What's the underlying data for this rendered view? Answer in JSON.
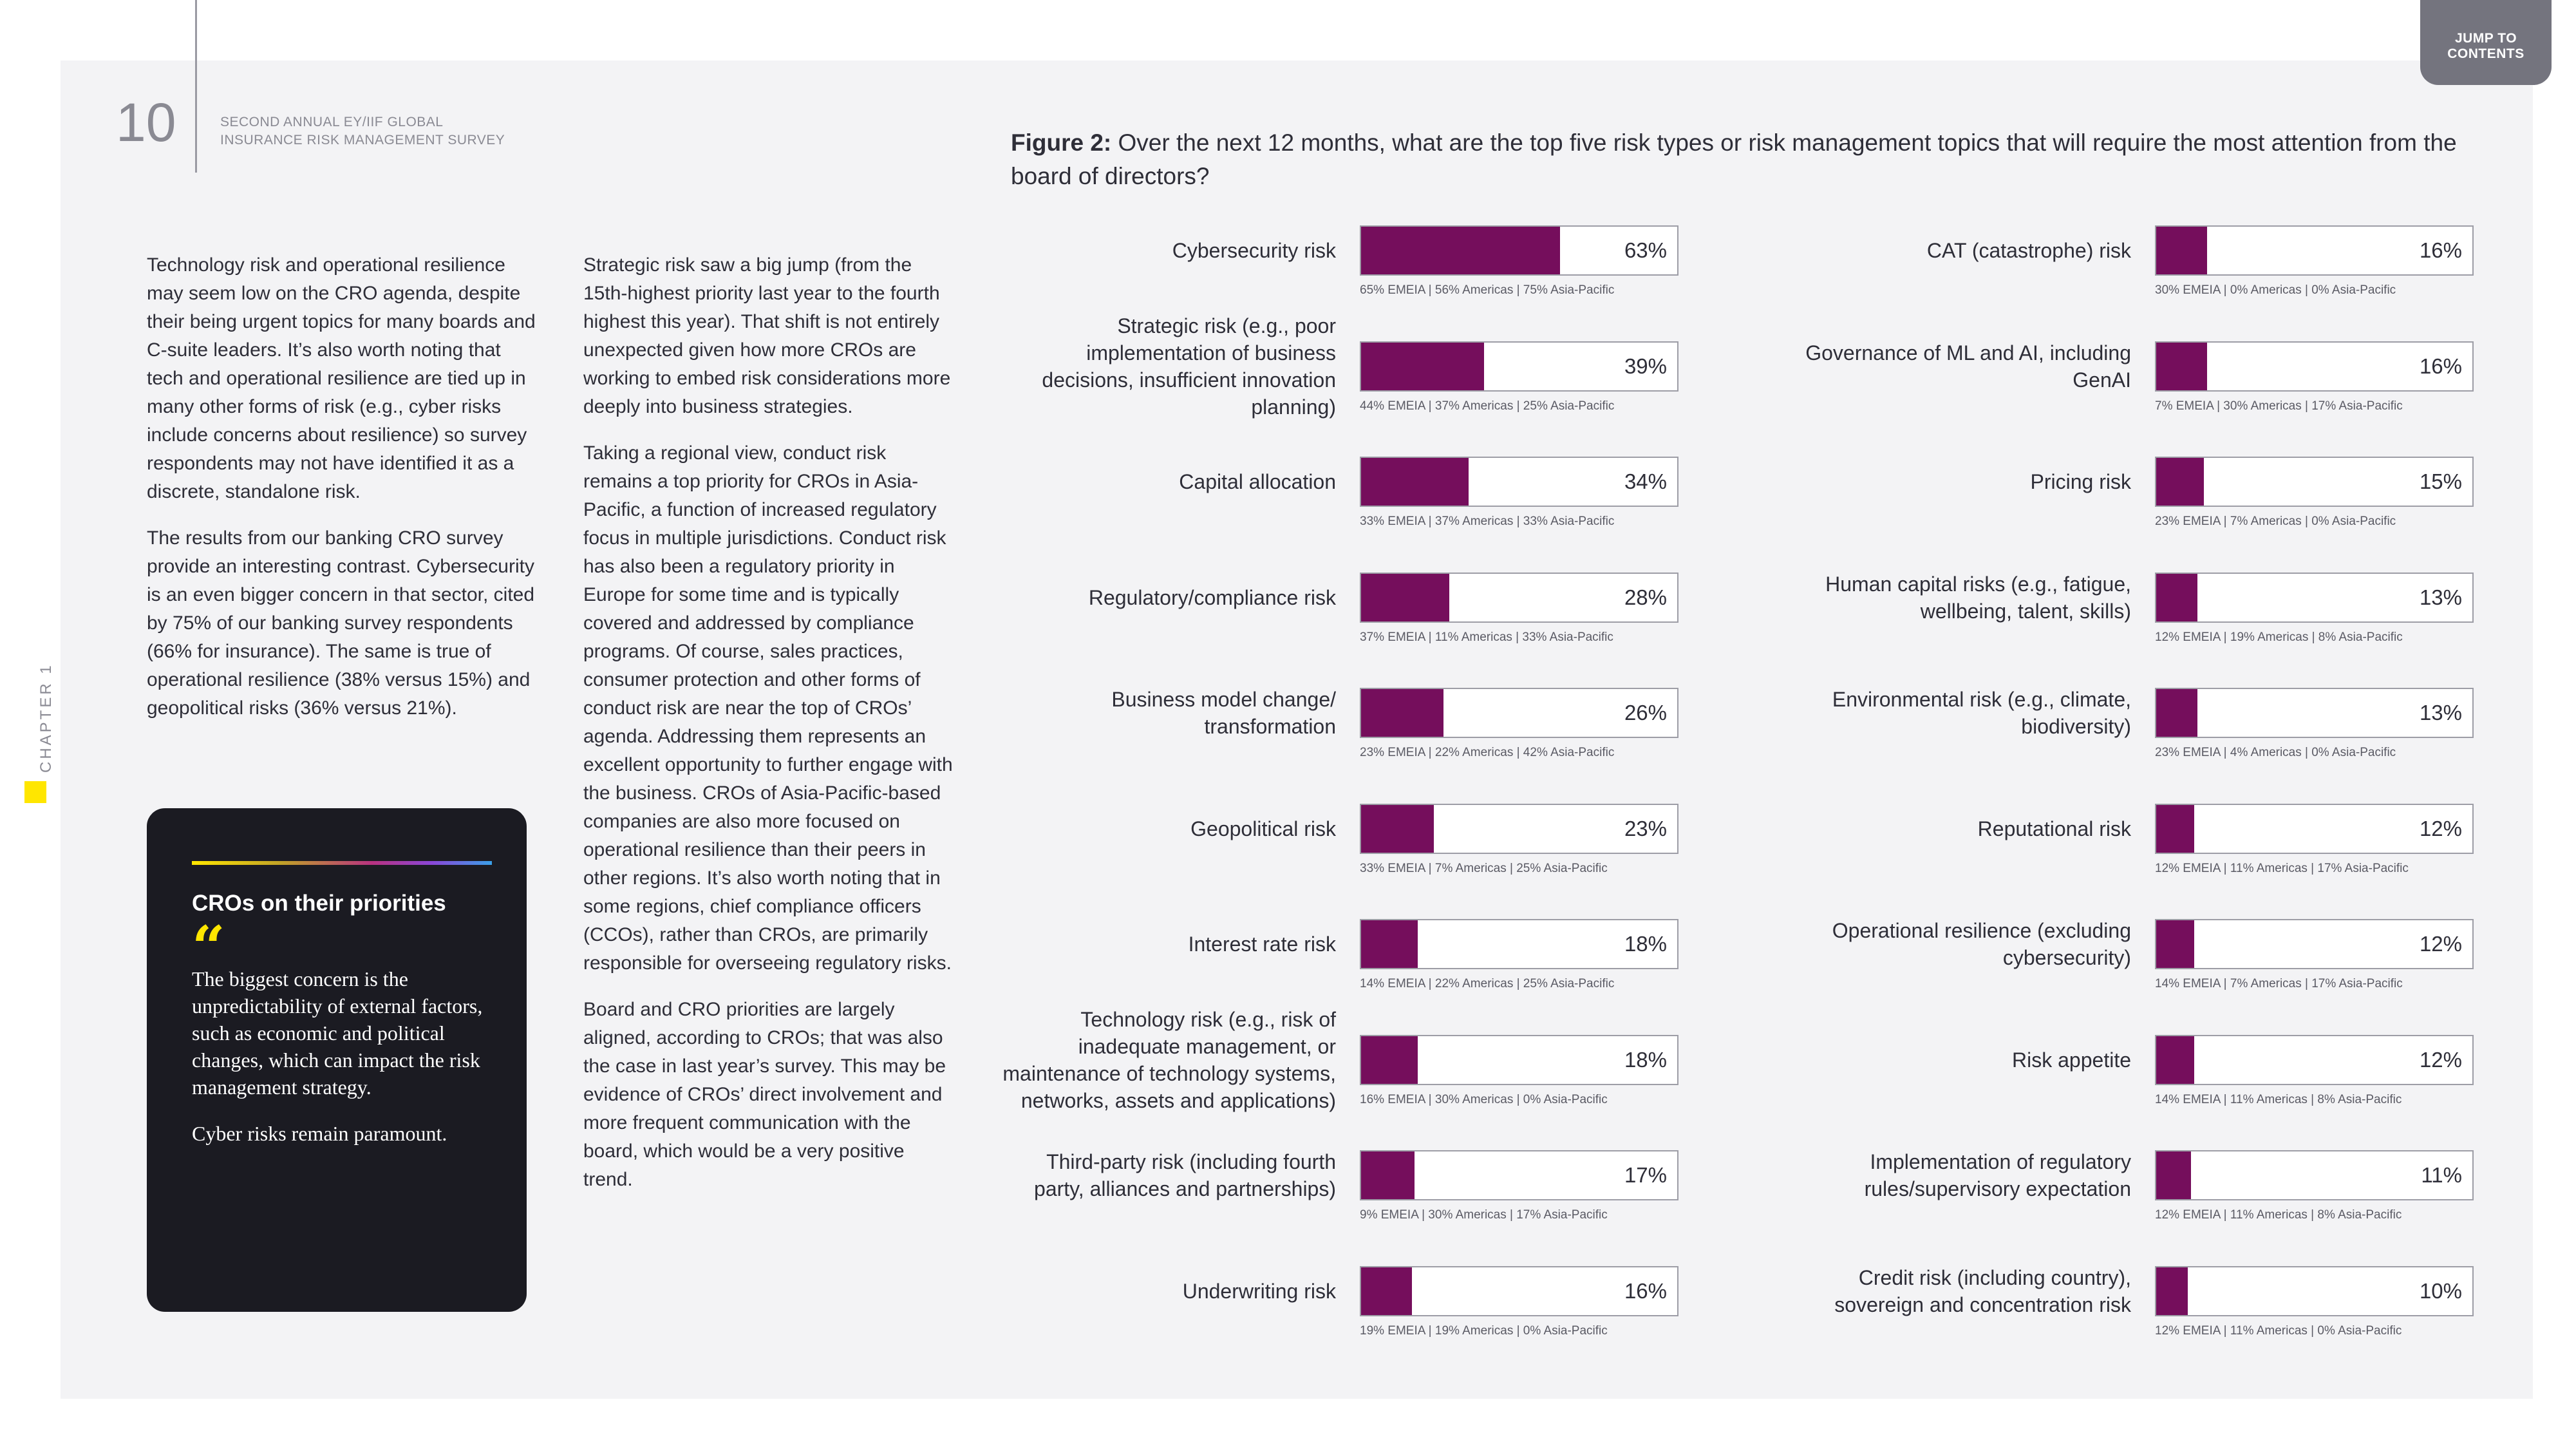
{
  "header": {
    "page_number": "10",
    "survey_title_line1": "SECOND ANNUAL EY/IIF GLOBAL",
    "survey_title_line2": "INSURANCE RISK MANAGEMENT SURVEY",
    "jump_line1": "JUMP TO",
    "jump_line2": "CONTENTS",
    "chapter_label": "CHAPTER 1"
  },
  "body": {
    "col1": [
      "Technology risk and operational resilience may seem low on the CRO agenda, despite their being urgent topics for many boards and C-suite leaders. It’s also worth noting that tech and operational resilience are tied up in many other forms of risk (e.g., cyber risks include concerns about resilience) so survey respondents may not have identified it as a discrete, standalone risk.",
      "The results from our banking CRO survey provide an interesting contrast. Cybersecurity is an even bigger concern in that sector, cited by 75% of our banking survey respondents (66% for insurance). The same is true of operational resilience (38% versus 15%) and geopolitical risks (36% versus 21%)."
    ],
    "col2": [
      "Strategic risk saw a big jump (from the 15th-highest priority last year to the fourth highest this year). That shift is not entirely unexpected given how more CROs are working to embed risk considerations more deeply into business strategies.",
      "Taking a regional view, conduct risk remains a top priority for CROs in Asia-Pacific, a function of increased regulatory focus in multiple jurisdictions. Conduct risk has also been a regulatory priority in Europe for some time and is typically covered and addressed by compliance programs. Of course, sales practices, consumer protection and other forms of conduct risk are near the top of CROs’ agenda. Addressing them represents an excellent opportunity to further engage with the business. CROs of Asia-Pacific-based companies are also more focused on operational resilience than their peers in other regions. It’s also worth noting that in some regions, chief compliance officers (CCOs), rather than CROs, are primarily responsible for overseeing regulatory risks.",
      "Board and CRO priorities are largely aligned, according to CROs; that was also the case in last year’s survey. This may be evidence of CROs’ direct involvement and more frequent communication with the board, which would be a very positive trend."
    ]
  },
  "quote": {
    "title": "CROs on their priorities",
    "mark": "“",
    "paragraphs": [
      "The biggest concern is the unpredictability of external factors, such as economic and political changes, which can impact the risk management strategy.",
      "Cyber risks remain paramount."
    ]
  },
  "figure": {
    "label": "Figure 2:",
    "question": " Over the next 12 months, what are the top five risk types or risk management topics that will require the most attention from the board of directors?"
  },
  "chart_data": {
    "type": "bar",
    "orientation": "horizontal",
    "title": "Figure 2: Over the next 12 months, what are the top five risk types or risk management topics that will require the most attention from the board of directors?",
    "unit": "%",
    "xlim": [
      0,
      100
    ],
    "bar_color": "#750e5c",
    "left_column": [
      {
        "label": "Cybersecurity risk",
        "value": 63,
        "display": "63%",
        "regional": "65% EMEIA | 56% Americas | 75% Asia-Pacific"
      },
      {
        "label": "Strategic risk (e.g., poor implementation of business decisions, insufficient innovation planning)",
        "value": 39,
        "display": "39%",
        "regional": "44% EMEIA | 37% Americas | 25% Asia-Pacific"
      },
      {
        "label": "Capital allocation",
        "value": 34,
        "display": "34%",
        "regional": "33% EMEIA | 37% Americas | 33% Asia-Pacific"
      },
      {
        "label": "Regulatory/compliance risk",
        "value": 28,
        "display": "28%",
        "regional": "37% EMEIA | 11% Americas | 33% Asia-Pacific"
      },
      {
        "label": "Business model change/ transformation",
        "value": 26,
        "display": "26%",
        "regional": "23% EMEIA | 22% Americas | 42% Asia-Pacific"
      },
      {
        "label": "Geopolitical risk",
        "value": 23,
        "display": "23%",
        "regional": "33% EMEIA | 7% Americas | 25% Asia-Pacific"
      },
      {
        "label": "Interest rate risk",
        "value": 18,
        "display": "18%",
        "regional": "14% EMEIA | 22% Americas | 25% Asia-Pacific"
      },
      {
        "label": "Technology risk (e.g., risk of inadequate management, or maintenance of technology systems, networks, assets and applications)",
        "value": 18,
        "display": "18%",
        "regional": "16% EMEIA | 30% Americas | 0% Asia-Pacific"
      },
      {
        "label": "Third-party risk (including fourth party, alliances and partnerships)",
        "value": 17,
        "display": "17%",
        "regional": "9% EMEIA | 30% Americas | 17% Asia-Pacific"
      },
      {
        "label": "Underwriting risk",
        "value": 16,
        "display": "16%",
        "regional": "19% EMEIA | 19% Americas | 0% Asia-Pacific"
      }
    ],
    "right_column": [
      {
        "label": "CAT (catastrophe) risk",
        "value": 16,
        "display": "16%",
        "regional": "30% EMEIA | 0% Americas | 0% Asia-Pacific"
      },
      {
        "label": "Governance of ML and AI, including GenAI",
        "value": 16,
        "display": "16%",
        "regional": "7% EMEIA | 30% Americas | 17% Asia-Pacific"
      },
      {
        "label": "Pricing risk",
        "value": 15,
        "display": "15%",
        "regional": "23% EMEIA | 7% Americas | 0% Asia-Pacific"
      },
      {
        "label": "Human capital risks (e.g., fatigue, wellbeing, talent, skills)",
        "value": 13,
        "display": "13%",
        "regional": "12% EMEIA | 19% Americas | 8% Asia-Pacific"
      },
      {
        "label": "Environmental risk (e.g., climate, biodiversity)",
        "value": 13,
        "display": "13%",
        "regional": "23% EMEIA | 4% Americas | 0% Asia-Pacific"
      },
      {
        "label": "Reputational risk",
        "value": 12,
        "display": "12%",
        "regional": "12% EMEIA | 11% Americas | 17% Asia-Pacific"
      },
      {
        "label": "Operational resilience (excluding cybersecurity)",
        "value": 12,
        "display": "12%",
        "regional": "14% EMEIA | 7% Americas | 17% Asia-Pacific"
      },
      {
        "label": "Risk appetite",
        "value": 12,
        "display": "12%",
        "regional": "14% EMEIA | 11% Americas | 8% Asia-Pacific"
      },
      {
        "label": "Implementation of regulatory rules/supervisory expectation",
        "value": 11,
        "display": "11%",
        "regional": "12% EMEIA | 11% Americas | 8% Asia-Pacific"
      },
      {
        "label": "Credit risk (including country), sovereign and concentration risk",
        "value": 10,
        "display": "10%",
        "regional": "12% EMEIA | 11% Americas | 0% Asia-Pacific"
      }
    ]
  }
}
